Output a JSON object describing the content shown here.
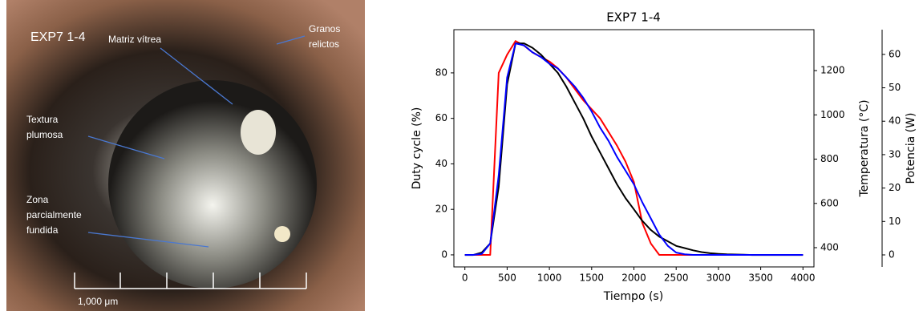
{
  "photo": {
    "label": "EXP7 1-4",
    "annotations": [
      [
        "Matriz vítrea"
      ],
      [
        "Granos",
        "relictos"
      ],
      [
        "Textura",
        "plumosa"
      ],
      [
        "Zona",
        "parcialmente",
        "fundida"
      ]
    ],
    "scale_label": "1,000 μm"
  },
  "chart_data": {
    "type": "line",
    "title": "EXP7 1-4",
    "xlabel": "Tiempo (s)",
    "ylabel": "Duty cycle (%)",
    "y2label": "Temperatura (°C)",
    "y3label": "Potencia (W)",
    "x": [
      0,
      100,
      200,
      300,
      400,
      500,
      600,
      700,
      800,
      900,
      1000,
      1100,
      1200,
      1300,
      1400,
      1500,
      1600,
      1700,
      1800,
      1900,
      2000,
      2100,
      2200,
      2300,
      2400,
      2500,
      2600,
      2700,
      2800,
      2900,
      3000,
      3100,
      3200,
      3300,
      3400,
      3500,
      3600,
      3700,
      3800,
      3900,
      4000
    ],
    "xlim": [
      -130,
      4130
    ],
    "xticks": [
      0,
      500,
      1000,
      1500,
      2000,
      2500,
      3000,
      3500,
      4000
    ],
    "ylim": [
      -5.3,
      99
    ],
    "yticks": [
      0,
      20,
      40,
      60,
      80
    ],
    "y2lim": [
      313,
      1385
    ],
    "y2ticks": [
      400,
      600,
      800,
      1000,
      1200
    ],
    "y3lim": [
      -3.6,
      67.4
    ],
    "y3ticks": [
      0,
      10,
      20,
      30,
      40,
      50,
      60
    ],
    "series": [
      {
        "color": "#ff0000",
        "axis": "y",
        "values": [
          0,
          0,
          0,
          0,
          80,
          88,
          94,
          92,
          89,
          87,
          85,
          82,
          78,
          73,
          68,
          64,
          60,
          54,
          48,
          41,
          32,
          14,
          5,
          0,
          0,
          0,
          0,
          0,
          0,
          0,
          0,
          0,
          0,
          0,
          0,
          0,
          0,
          0,
          0,
          0,
          0
        ]
      },
      {
        "color": "#000000",
        "axis": "y2",
        "values": [
          367,
          367,
          378,
          419,
          676,
          1138,
          1323,
          1323,
          1303,
          1272,
          1231,
          1190,
          1128,
          1056,
          984,
          902,
          830,
          758,
          686,
          624,
          573,
          521,
          480,
          450,
          429,
          408,
          398,
          388,
          380,
          375,
          372,
          370,
          369,
          368,
          367,
          367,
          367,
          367,
          367,
          367,
          367
        ]
      },
      {
        "color": "#0000ff",
        "axis": "y3",
        "values": [
          0,
          0,
          0.3,
          3.4,
          23.8,
          53.1,
          63.3,
          62.7,
          60.6,
          59.2,
          57.2,
          55.8,
          53.1,
          50.4,
          47,
          42.9,
          38.1,
          34.1,
          29.3,
          25.2,
          21.1,
          15.7,
          10.9,
          6.1,
          2.7,
          0.7,
          0.2,
          0,
          0,
          0,
          0,
          0,
          0,
          0,
          0,
          0,
          0,
          0,
          0,
          0,
          0
        ]
      }
    ]
  }
}
